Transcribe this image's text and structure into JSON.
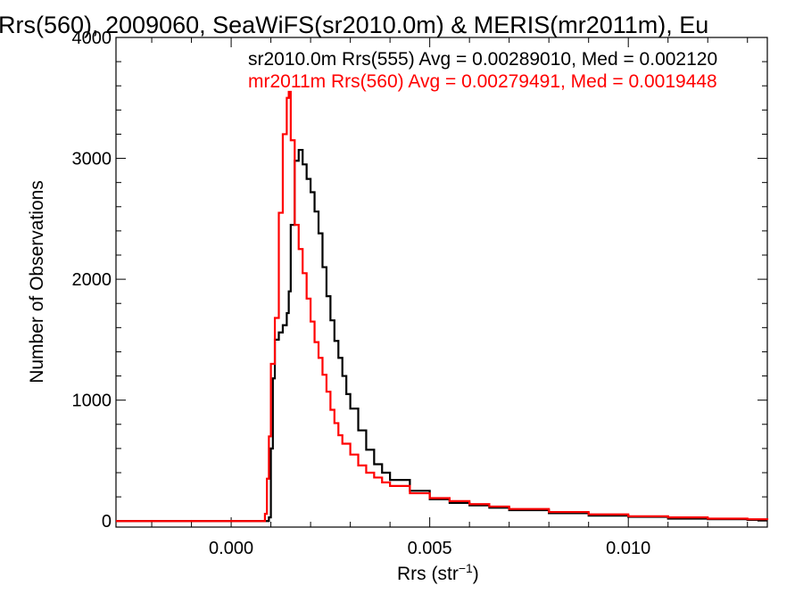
{
  "chart_data": {
    "type": "line",
    "title": "Rrs(560), 2009060, SeaWiFS(sr2010.0m) & MERIS(mr2011m), Eu",
    "xlabel_main": "Rrs (str",
    "xlabel_sup": "−1",
    "xlabel_close": ")",
    "ylabel": "Number of Observations",
    "xlim": [
      -0.0029,
      0.0135
    ],
    "ylim": [
      -50,
      4000
    ],
    "xticks": [
      0.0,
      0.005,
      0.01
    ],
    "xtick_labels": [
      "0.000",
      "0.005",
      "0.010"
    ],
    "yticks": [
      0,
      1000,
      2000,
      3000,
      4000
    ],
    "ytick_labels": [
      "0",
      "1000",
      "2000",
      "3000",
      "4000"
    ],
    "legend": [
      "sr2010.0m Rrs(555) Avg = 0.00289010, Med = 0.002120",
      "mr2011m Rrs(560) Avg = 0.00279491, Med = 0.0019448"
    ],
    "series": [
      {
        "color": "#000000",
        "x": [
          -0.0029,
          0.0,
          0.0008,
          0.00095,
          0.001,
          0.00105,
          0.0011,
          0.0012,
          0.0013,
          0.0014,
          0.00145,
          0.0015,
          0.0016,
          0.0017,
          0.0018,
          0.0019,
          0.002,
          0.0021,
          0.0022,
          0.0023,
          0.0024,
          0.0025,
          0.0026,
          0.0027,
          0.0028,
          0.0029,
          0.003,
          0.0032,
          0.0034,
          0.0036,
          0.0038,
          0.004,
          0.0045,
          0.005,
          0.0055,
          0.006,
          0.0065,
          0.007,
          0.008,
          0.009,
          0.01,
          0.011,
          0.012,
          0.013,
          0.0135
        ],
        "y": [
          0,
          0,
          0,
          30,
          600,
          1180,
          1500,
          1560,
          1620,
          1720,
          1900,
          2450,
          2980,
          3070,
          2950,
          2830,
          2720,
          2560,
          2380,
          2100,
          1860,
          1660,
          1490,
          1350,
          1200,
          1050,
          930,
          750,
          590,
          470,
          400,
          340,
          250,
          180,
          150,
          130,
          110,
          90,
          65,
          45,
          35,
          20,
          15,
          10,
          10
        ]
      },
      {
        "color": "#ff0000",
        "x": [
          -0.0029,
          0.0,
          0.0008,
          0.00085,
          0.0009,
          0.00095,
          0.001,
          0.0011,
          0.0012,
          0.0013,
          0.0014,
          0.00145,
          0.0015,
          0.0016,
          0.0017,
          0.0018,
          0.0019,
          0.002,
          0.0021,
          0.0022,
          0.0023,
          0.0024,
          0.0025,
          0.0026,
          0.0027,
          0.0028,
          0.003,
          0.0032,
          0.0034,
          0.0036,
          0.0038,
          0.004,
          0.0045,
          0.005,
          0.0055,
          0.006,
          0.0065,
          0.007,
          0.008,
          0.009,
          0.01,
          0.011,
          0.012,
          0.013,
          0.0135
        ],
        "y": [
          0,
          0,
          0,
          60,
          350,
          700,
          1300,
          1680,
          2550,
          3200,
          3500,
          3550,
          3150,
          2450,
          2250,
          2050,
          1840,
          1650,
          1480,
          1350,
          1210,
          1070,
          920,
          810,
          710,
          640,
          550,
          460,
          400,
          360,
          320,
          290,
          230,
          190,
          165,
          140,
          120,
          100,
          75,
          55,
          40,
          30,
          20,
          15,
          10
        ]
      }
    ]
  }
}
